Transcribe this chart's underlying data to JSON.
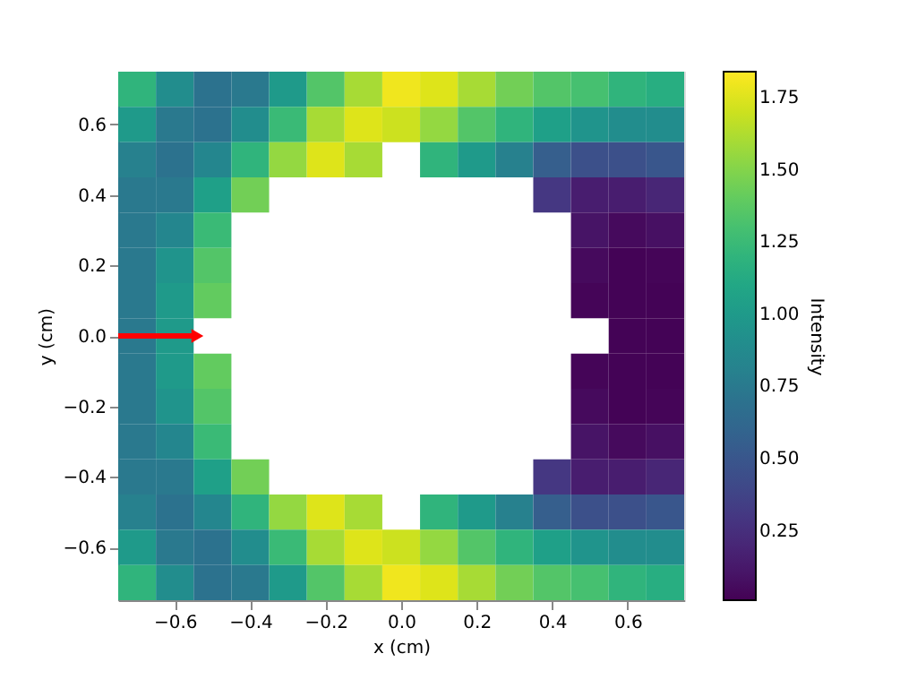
{
  "chart_data": {
    "type": "heatmap",
    "xlabel": "x (cm)",
    "ylabel": "y (cm)",
    "clabel": "Intensity",
    "x": [
      -0.7,
      -0.6,
      -0.5,
      -0.4,
      -0.3,
      -0.2,
      -0.1,
      0.0,
      0.1,
      0.2,
      0.3,
      0.4,
      0.5,
      0.6,
      0.7
    ],
    "y": [
      0.7,
      0.6,
      0.5,
      0.4,
      0.3,
      0.2,
      0.1,
      0.0,
      -0.1,
      -0.2,
      -0.3,
      -0.4,
      -0.5,
      -0.6,
      -0.7
    ],
    "cells": [
      [
        1.2,
        0.9,
        0.7,
        0.75,
        1.0,
        1.35,
        1.6,
        1.8,
        1.75,
        1.6,
        1.45,
        1.35,
        1.3,
        1.2,
        1.15
      ],
      [
        1.0,
        0.75,
        0.7,
        0.9,
        1.25,
        1.6,
        1.75,
        1.7,
        1.55,
        1.35,
        1.2,
        1.05,
        0.95,
        0.9,
        0.9
      ],
      [
        0.8,
        0.7,
        0.85,
        1.2,
        1.55,
        1.75,
        1.6,
        null,
        1.2,
        1.0,
        0.8,
        0.55,
        0.45,
        0.45,
        0.5
      ],
      [
        0.75,
        0.75,
        1.05,
        1.45,
        null,
        null,
        null,
        null,
        null,
        null,
        null,
        0.3,
        0.15,
        0.15,
        0.2
      ],
      [
        0.75,
        0.85,
        1.25,
        null,
        null,
        null,
        null,
        null,
        null,
        null,
        null,
        null,
        0.1,
        0.05,
        0.08
      ],
      [
        0.75,
        0.95,
        1.35,
        null,
        null,
        null,
        null,
        null,
        null,
        null,
        null,
        null,
        0.05,
        0.02,
        0.03
      ],
      [
        0.75,
        1.0,
        1.4,
        null,
        null,
        null,
        null,
        null,
        null,
        null,
        null,
        null,
        0.03,
        0.02,
        0.02
      ],
      [
        0.75,
        1.0,
        null,
        null,
        null,
        null,
        null,
        null,
        null,
        null,
        null,
        null,
        null,
        0.02,
        0.02
      ],
      [
        0.75,
        1.0,
        1.4,
        null,
        null,
        null,
        null,
        null,
        null,
        null,
        null,
        null,
        0.03,
        0.02,
        0.02
      ],
      [
        0.75,
        0.95,
        1.35,
        null,
        null,
        null,
        null,
        null,
        null,
        null,
        null,
        null,
        0.05,
        0.02,
        0.03
      ],
      [
        0.75,
        0.85,
        1.25,
        null,
        null,
        null,
        null,
        null,
        null,
        null,
        null,
        null,
        0.1,
        0.05,
        0.08
      ],
      [
        0.75,
        0.75,
        1.05,
        1.45,
        null,
        null,
        null,
        null,
        null,
        null,
        null,
        0.3,
        0.15,
        0.15,
        0.2
      ],
      [
        0.8,
        0.7,
        0.85,
        1.2,
        1.55,
        1.75,
        1.6,
        null,
        1.2,
        1.0,
        0.8,
        0.55,
        0.45,
        0.45,
        0.5
      ],
      [
        1.0,
        0.75,
        0.7,
        0.9,
        1.25,
        1.6,
        1.75,
        1.7,
        1.55,
        1.35,
        1.2,
        1.05,
        0.95,
        0.9,
        0.9
      ],
      [
        1.2,
        0.9,
        0.7,
        0.75,
        1.0,
        1.35,
        1.6,
        1.8,
        1.75,
        1.6,
        1.45,
        1.35,
        1.3,
        1.2,
        1.15
      ]
    ],
    "xlim": [
      -0.75,
      0.75
    ],
    "ylim": [
      -0.75,
      0.75
    ],
    "xticks": [
      -0.6,
      -0.4,
      -0.2,
      {
        "value": 0,
        "label": "0.0"
      },
      0.2,
      0.4,
      0.6
    ],
    "yticks": [
      -0.6,
      -0.4,
      -0.2,
      {
        "value": 0,
        "label": "0.0"
      },
      0.2,
      0.4,
      0.6
    ],
    "clim": [
      0.01,
      1.84
    ],
    "cticks": [
      0.25,
      {
        "value": 0.5,
        "label": "0.50"
      },
      0.75,
      {
        "value": 1,
        "label": "1.00"
      },
      1.25,
      {
        "value": 1.5,
        "label": "1.50"
      },
      1.75
    ],
    "grid": false
  }
}
